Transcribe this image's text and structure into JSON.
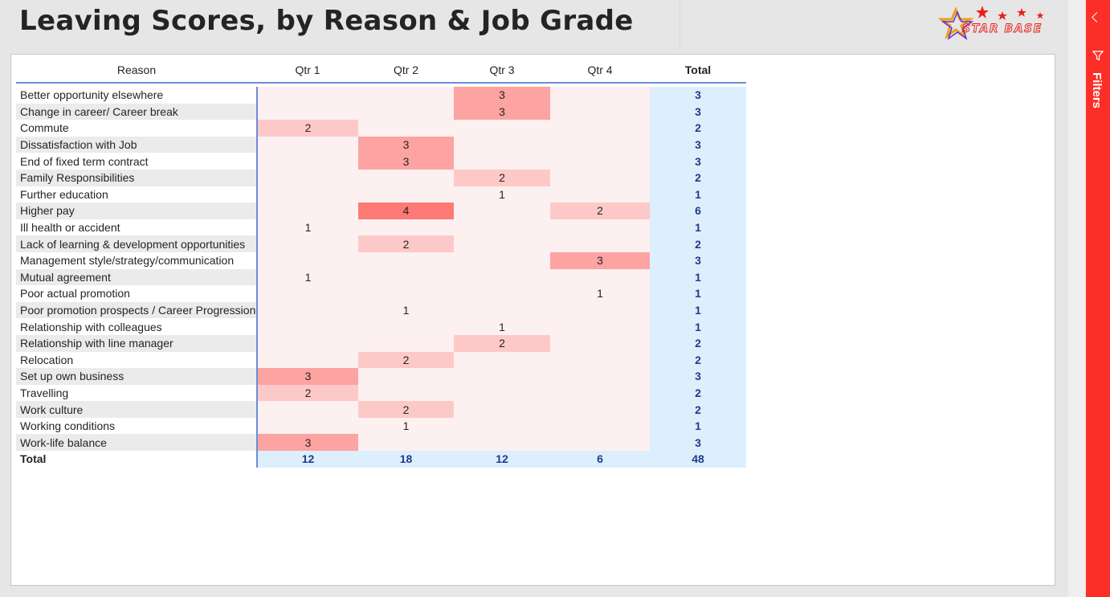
{
  "page": {
    "title": "Leaving Scores, by Reason & Job Grade"
  },
  "logo": {
    "text": "STAR BASE"
  },
  "colors": {
    "heat_base": "#fdf0f0",
    "heat_1": "#fdf0f0",
    "heat_2": "#fdc9c8",
    "heat_3": "#fda3a2",
    "heat_4": "#fe7a77",
    "total_bg": "#ddeefd",
    "total_text": "#1f3c88",
    "filters_pane": "#fc2e28"
  },
  "matrix": {
    "headers": {
      "reason": "Reason",
      "q1": "Qtr 1",
      "q2": "Qtr 2",
      "q3": "Qtr 3",
      "q4": "Qtr 4",
      "total": "Total"
    },
    "rows": [
      {
        "reason": "Better opportunity elsewhere",
        "q": [
          "",
          "",
          "3",
          ""
        ],
        "total": "3"
      },
      {
        "reason": "Change in career/ Career break",
        "q": [
          "",
          "",
          "3",
          ""
        ],
        "total": "3"
      },
      {
        "reason": "Commute",
        "q": [
          "2",
          "",
          "",
          ""
        ],
        "total": "2"
      },
      {
        "reason": "Dissatisfaction with Job",
        "q": [
          "",
          "3",
          "",
          ""
        ],
        "total": "3"
      },
      {
        "reason": "End of fixed term contract",
        "q": [
          "",
          "3",
          "",
          ""
        ],
        "total": "3"
      },
      {
        "reason": "Family Responsibilities",
        "q": [
          "",
          "",
          "2",
          ""
        ],
        "total": "2"
      },
      {
        "reason": "Further education",
        "q": [
          "",
          "",
          "1",
          ""
        ],
        "total": "1"
      },
      {
        "reason": "Higher pay",
        "q": [
          "",
          "4",
          "",
          "2"
        ],
        "total": "6"
      },
      {
        "reason": "Ill health or accident",
        "q": [
          "1",
          "",
          "",
          ""
        ],
        "total": "1"
      },
      {
        "reason": "Lack of learning & development opportunities",
        "q": [
          "",
          "2",
          "",
          ""
        ],
        "total": "2"
      },
      {
        "reason": "Management style/strategy/communication",
        "q": [
          "",
          "",
          "",
          "3"
        ],
        "total": "3"
      },
      {
        "reason": "Mutual agreement",
        "q": [
          "1",
          "",
          "",
          ""
        ],
        "total": "1"
      },
      {
        "reason": "Poor actual promotion",
        "q": [
          "",
          "",
          "",
          "1"
        ],
        "total": "1"
      },
      {
        "reason": "Poor promotion prospects / Career Progression",
        "q": [
          "",
          "1",
          "",
          ""
        ],
        "total": "1"
      },
      {
        "reason": "Relationship with colleagues",
        "q": [
          "",
          "",
          "1",
          ""
        ],
        "total": "1"
      },
      {
        "reason": "Relationship with line manager",
        "q": [
          "",
          "",
          "2",
          ""
        ],
        "total": "2"
      },
      {
        "reason": "Relocation",
        "q": [
          "",
          "2",
          "",
          ""
        ],
        "total": "2"
      },
      {
        "reason": "Set up own business",
        "q": [
          "3",
          "",
          "",
          ""
        ],
        "total": "3"
      },
      {
        "reason": "Travelling",
        "q": [
          "2",
          "",
          "",
          ""
        ],
        "total": "2"
      },
      {
        "reason": "Work culture",
        "q": [
          "",
          "2",
          "",
          ""
        ],
        "total": "2"
      },
      {
        "reason": "Working conditions",
        "q": [
          "",
          "1",
          "",
          ""
        ],
        "total": "1"
      },
      {
        "reason": "Work-life balance",
        "q": [
          "3",
          "",
          "",
          ""
        ],
        "total": "3"
      }
    ],
    "totals": {
      "label": "Total",
      "q1": "12",
      "q2": "18",
      "q3": "12",
      "q4": "6",
      "total": "48"
    }
  },
  "filters": {
    "label": "Filters",
    "collapse_icon": "chevron-left-icon",
    "filter_icon": "funnel-icon"
  }
}
